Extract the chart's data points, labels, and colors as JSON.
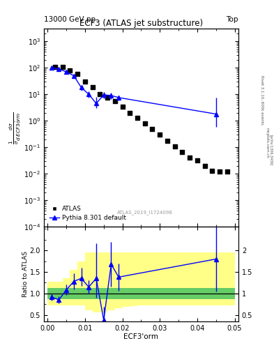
{
  "title_left": "13000 GeV pp",
  "title_right": "Top",
  "panel_title": "ECF3 (ATLAS jet substructure)",
  "ylabel_ratio": "Ratio to ATLAS",
  "xlabel": "ECF3'orm",
  "watermark": "ATLAS_2019_I1724098",
  "right_label": "Rivet 3.1.10, 600k events",
  "arxiv_label": "[arXiv:1306.3436]",
  "mcplots_label": "mcplots.cern.ch",
  "atlas_x": [
    0.002,
    0.004,
    0.006,
    0.008,
    0.01,
    0.012,
    0.014,
    0.016,
    0.018,
    0.02,
    0.022,
    0.024,
    0.026,
    0.028,
    0.03,
    0.032,
    0.034,
    0.036,
    0.038,
    0.04,
    0.042,
    0.044,
    0.046,
    0.048
  ],
  "atlas_y": [
    105,
    105,
    80,
    60,
    30,
    18,
    10,
    7.5,
    5.5,
    3.5,
    2.0,
    1.3,
    0.8,
    0.5,
    0.3,
    0.18,
    0.11,
    0.065,
    0.04,
    0.033,
    0.02,
    0.013,
    0.012,
    0.012
  ],
  "pythia_x": [
    0.001,
    0.003,
    0.005,
    0.007,
    0.009,
    0.011,
    0.013,
    0.015,
    0.017,
    0.019,
    0.045
  ],
  "pythia_y": [
    100,
    90,
    70,
    50,
    18,
    10,
    4.5,
    9.5,
    9.0,
    7.5,
    1.8
  ],
  "pythia_yerr_lo": [
    4,
    4,
    4,
    4,
    4,
    2.5,
    1.5,
    2.5,
    2.5,
    1.5,
    1.2
  ],
  "pythia_yerr_hi": [
    4,
    4,
    4,
    4,
    4,
    2.5,
    3.5,
    2.5,
    2.5,
    1.5,
    5.5
  ],
  "ratio_x": [
    0.001,
    0.003,
    0.005,
    0.007,
    0.009,
    0.011,
    0.013,
    0.015,
    0.017,
    0.019,
    0.045
  ],
  "ratio_y": [
    0.92,
    0.85,
    1.08,
    1.28,
    1.35,
    1.15,
    1.35,
    0.38,
    1.68,
    1.38,
    1.8
  ],
  "ratio_yerr_lo": [
    0.08,
    0.08,
    0.12,
    0.18,
    0.18,
    0.15,
    0.45,
    0.28,
    0.52,
    0.32,
    0.75
  ],
  "ratio_yerr_hi": [
    0.08,
    0.08,
    0.12,
    0.18,
    0.25,
    0.15,
    0.82,
    0.3,
    0.52,
    0.32,
    0.95
  ],
  "band_edges": [
    0.0,
    0.002,
    0.004,
    0.006,
    0.008,
    0.01,
    0.012,
    0.014,
    0.016,
    0.018,
    0.02,
    0.022,
    0.024,
    0.026,
    0.028,
    0.03,
    0.032,
    0.034,
    0.036,
    0.038,
    0.04,
    0.042,
    0.044,
    0.046,
    0.048,
    0.05
  ],
  "yellow_lo": [
    0.72,
    0.72,
    0.72,
    0.72,
    0.72,
    0.6,
    0.55,
    0.55,
    0.6,
    0.65,
    0.68,
    0.7,
    0.72,
    0.72,
    0.72,
    0.72,
    0.72,
    0.72,
    0.72,
    0.72,
    0.72,
    0.72,
    0.72,
    0.72,
    0.72
  ],
  "yellow_hi": [
    1.28,
    1.28,
    1.35,
    1.55,
    1.75,
    1.95,
    1.95,
    1.95,
    1.95,
    1.95,
    1.95,
    1.95,
    1.95,
    1.95,
    1.95,
    1.95,
    1.95,
    1.95,
    1.95,
    1.95,
    1.95,
    1.95,
    1.95,
    1.95,
    1.95
  ],
  "green_lo": [
    0.87,
    0.87,
    0.87,
    0.87,
    0.87,
    0.87,
    0.87,
    0.87,
    0.87,
    0.87,
    0.87,
    0.87,
    0.87,
    0.87,
    0.87,
    0.87,
    0.87,
    0.87,
    0.87,
    0.87,
    0.87,
    0.87,
    0.87,
    0.87,
    0.87
  ],
  "green_hi": [
    1.13,
    1.13,
    1.13,
    1.13,
    1.13,
    1.13,
    1.13,
    1.13,
    1.13,
    1.13,
    1.13,
    1.13,
    1.13,
    1.13,
    1.13,
    1.13,
    1.13,
    1.13,
    1.13,
    1.13,
    1.13,
    1.13,
    1.13,
    1.13,
    1.13
  ],
  "ylim_main": [
    0.0001,
    3000
  ],
  "ylim_ratio": [
    0.35,
    2.55
  ],
  "xlim": [
    -0.001,
    0.051
  ],
  "color_atlas": "black",
  "color_pythia": "blue",
  "color_green": "#66CC66",
  "color_yellow": "#FFFF88",
  "marker_atlas": "s",
  "marker_pythia": "^"
}
